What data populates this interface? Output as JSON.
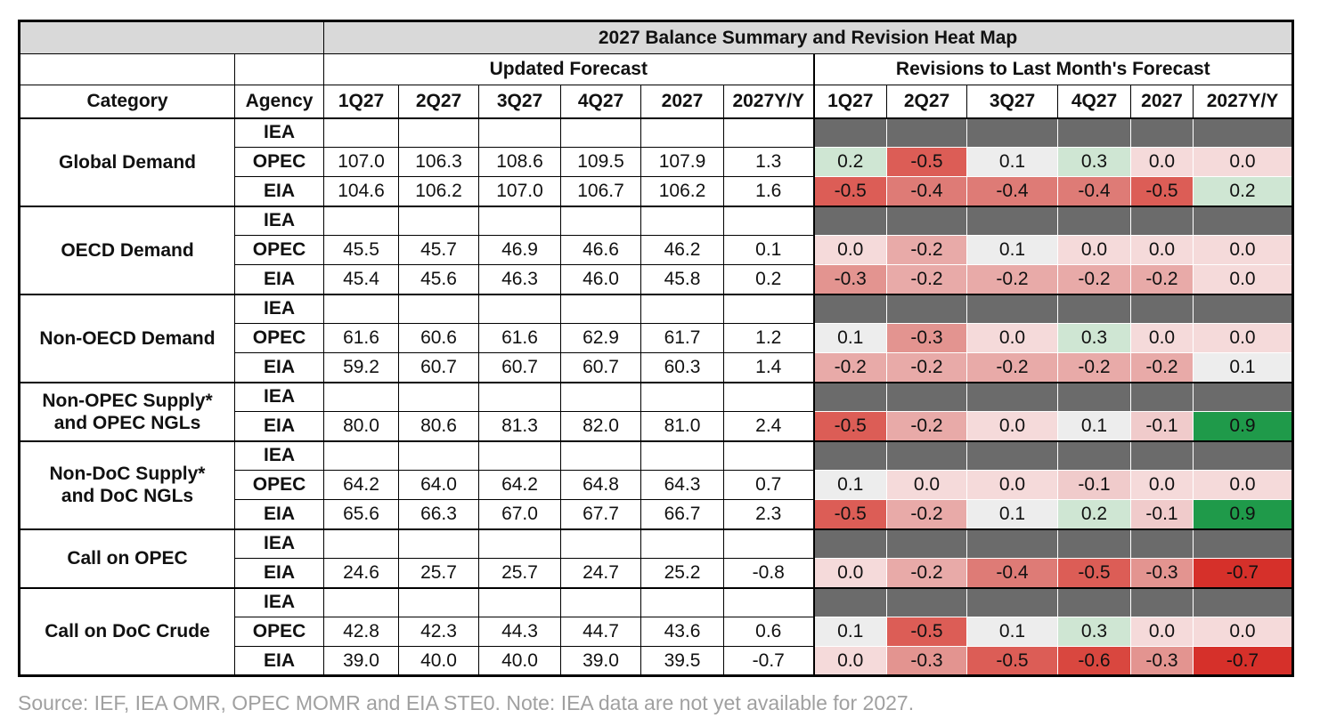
{
  "title": "2027 Balance Summary and Revision Heat Map",
  "header": {
    "group_updated": "Updated Forecast",
    "group_revisions": "Revisions to Last Month's Forecast",
    "category": "Category",
    "agency": "Agency",
    "periods": [
      "1Q27",
      "2Q27",
      "3Q27",
      "4Q27",
      "2027",
      "2027Y/Y"
    ],
    "revision_periods": [
      "1Q27",
      "2Q27",
      "3Q27",
      "4Q27",
      "2027",
      "2027Y/Y"
    ]
  },
  "groups": [
    {
      "category": "Global Demand",
      "rows": [
        {
          "agency": "IEA"
        },
        {
          "agency": "OPEC",
          "forecast": [
            "107.0",
            "106.3",
            "108.6",
            "109.5",
            "107.9",
            "1.3"
          ],
          "revisions": [
            "0.2",
            "-0.5",
            "0.1",
            "0.3",
            "0.0",
            "0.0"
          ]
        },
        {
          "agency": "EIA",
          "forecast": [
            "104.6",
            "106.2",
            "107.0",
            "106.7",
            "106.2",
            "1.6"
          ],
          "revisions": [
            "-0.5",
            "-0.4",
            "-0.4",
            "-0.4",
            "-0.5",
            "0.2"
          ]
        }
      ]
    },
    {
      "category": "OECD Demand",
      "rows": [
        {
          "agency": "IEA"
        },
        {
          "agency": "OPEC",
          "forecast": [
            "45.5",
            "45.7",
            "46.9",
            "46.6",
            "46.2",
            "0.1"
          ],
          "revisions": [
            "0.0",
            "-0.2",
            "0.1",
            "0.0",
            "0.0",
            "0.0"
          ]
        },
        {
          "agency": "EIA",
          "forecast": [
            "45.4",
            "45.6",
            "46.3",
            "46.0",
            "45.8",
            "0.2"
          ],
          "revisions": [
            "-0.3",
            "-0.2",
            "-0.2",
            "-0.2",
            "-0.2",
            "0.0"
          ]
        }
      ]
    },
    {
      "category": "Non-OECD Demand",
      "rows": [
        {
          "agency": "IEA"
        },
        {
          "agency": "OPEC",
          "forecast": [
            "61.6",
            "60.6",
            "61.6",
            "62.9",
            "61.7",
            "1.2"
          ],
          "revisions": [
            "0.1",
            "-0.3",
            "0.0",
            "0.3",
            "0.0",
            "0.0"
          ]
        },
        {
          "agency": "EIA",
          "forecast": [
            "59.2",
            "60.7",
            "60.7",
            "60.7",
            "60.3",
            "1.4"
          ],
          "revisions": [
            "-0.2",
            "-0.2",
            "-0.2",
            "-0.2",
            "-0.2",
            "0.1"
          ]
        }
      ]
    },
    {
      "category": "Non-OPEC Supply*\nand OPEC NGLs",
      "rows": [
        {
          "agency": "IEA"
        },
        {
          "agency": "EIA",
          "forecast": [
            "80.0",
            "80.6",
            "81.3",
            "82.0",
            "81.0",
            "2.4"
          ],
          "revisions": [
            "-0.5",
            "-0.2",
            "0.0",
            "0.1",
            "-0.1",
            "0.9"
          ]
        }
      ]
    },
    {
      "category": "Non-DoC Supply*\nand DoC NGLs",
      "rows": [
        {
          "agency": "IEA"
        },
        {
          "agency": "OPEC",
          "forecast": [
            "64.2",
            "64.0",
            "64.2",
            "64.8",
            "64.3",
            "0.7"
          ],
          "revisions": [
            "0.1",
            "0.0",
            "0.0",
            "-0.1",
            "0.0",
            "0.0"
          ]
        },
        {
          "agency": "EIA",
          "forecast": [
            "65.6",
            "66.3",
            "67.0",
            "67.7",
            "66.7",
            "2.3"
          ],
          "revisions": [
            "-0.5",
            "-0.2",
            "0.1",
            "0.2",
            "-0.1",
            "0.9"
          ]
        }
      ]
    },
    {
      "category": "Call on OPEC",
      "rows": [
        {
          "agency": "IEA"
        },
        {
          "agency": "EIA",
          "forecast": [
            "24.6",
            "25.7",
            "25.7",
            "24.7",
            "25.2",
            "-0.8"
          ],
          "revisions": [
            "0.0",
            "-0.2",
            "-0.4",
            "-0.5",
            "-0.3",
            "-0.7"
          ]
        }
      ]
    },
    {
      "category": "Call on DoC Crude",
      "rows": [
        {
          "agency": "IEA"
        },
        {
          "agency": "OPEC",
          "forecast": [
            "42.8",
            "42.3",
            "44.3",
            "44.7",
            "43.6",
            "0.6"
          ],
          "revisions": [
            "0.1",
            "-0.5",
            "0.1",
            "0.3",
            "0.0",
            "0.0"
          ]
        },
        {
          "agency": "EIA",
          "forecast": [
            "39.0",
            "40.0",
            "40.0",
            "39.0",
            "39.5",
            "-0.7"
          ],
          "revisions": [
            "0.0",
            "-0.3",
            "-0.5",
            "-0.6",
            "-0.3",
            "-0.7"
          ]
        }
      ]
    }
  ],
  "source_note": "Source: IEF, IEA OMR, OPEC MOMR and EIA STE0. Note: IEA data are not yet available for 2027."
}
